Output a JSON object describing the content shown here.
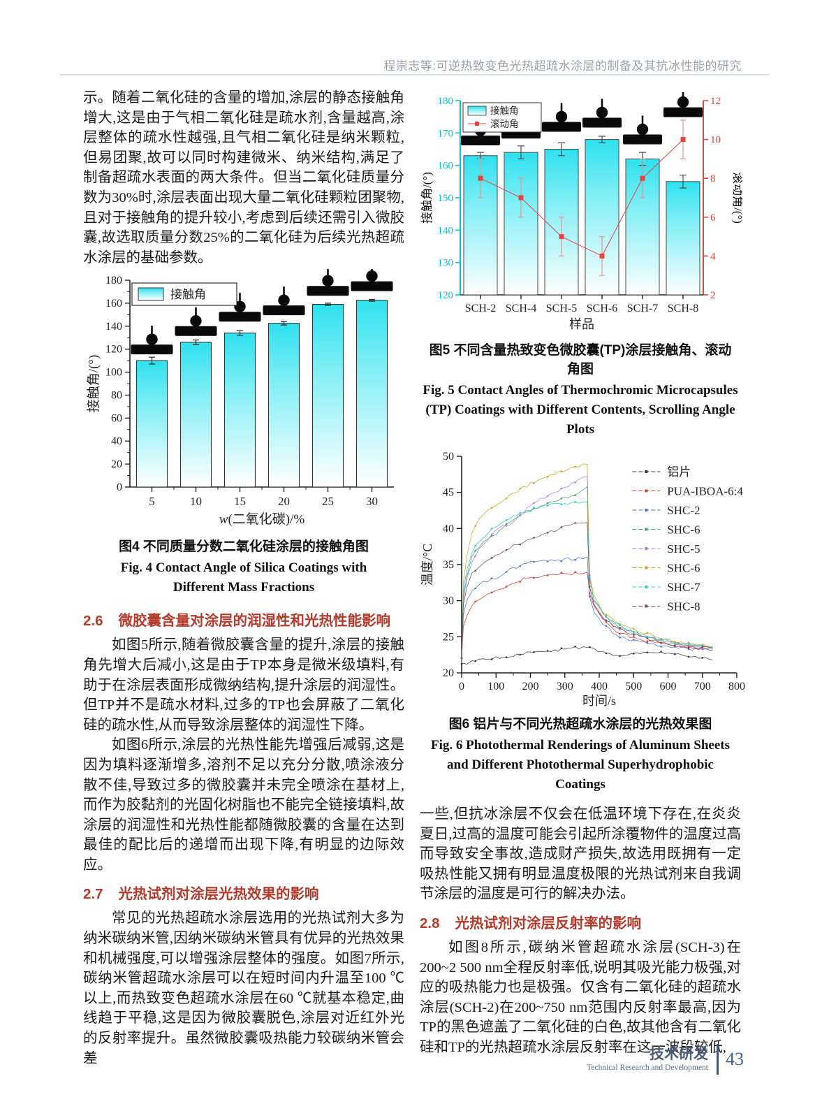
{
  "header": {
    "running_title": "程崇志等:可逆热致变色光热超疏水涂层的制备及其抗冰性能的研究"
  },
  "left_column": {
    "para1": "示。随着二氧化硅的含量的增加,涂层的静态接触角增大,这是由于气相二氧化硅是疏水剂,含量越高,涂层整体的疏水性越强,且气相二氧化硅是纳米颗粒,但易团聚,故可以同时构建微米、纳米结构,满足了制备超疏水表面的两大条件。但当二氧化硅质量分数为30%时,涂层表面出现大量二氧化硅颗粒团聚物,且对于接触角的提升较小,考虑到后续还需引入微胶囊,故选取质量分数25%的二氧化硅为后续光热超疏水涂层的基础参数。",
    "fig4_caption_cn": "图4  不同质量分数二氧化硅涂层的接触角图",
    "fig4_caption_en": "Fig. 4  Contact Angle of Silica Coatings with Different Mass Fractions",
    "sec26_num": "2.6",
    "sec26_title": "微胶囊含量对涂层的润湿性和光热性能影响",
    "sec26_para1": "如图5所示,随着微胶囊含量的提升,涂层的接触角先增大后减小,这是由于TP本身是微米级填料,有助于在涂层表面形成微纳结构,提升涂层的润湿性。但TP并不是疏水材料,过多的TP也会屏蔽了二氧化硅的疏水性,从而导致涂层整体的润湿性下降。",
    "sec26_para2": "如图6所示,涂层的光热性能先增强后减弱,这是因为填料逐渐增多,溶剂不足以充分分散,喷涂液分散不佳,导致过多的微胶囊并未完全喷涂在基材上,而作为胶黏剂的光固化树脂也不能完全链接填料,故涂层的润湿性和光热性能都随微胶囊的含量在达到最佳的配比后的递增而出现下降,有明显的边际效应。",
    "sec27_num": "2.7",
    "sec27_title": "光热试剂对涂层光热效果的影响",
    "sec27_para1": "常见的光热超疏水涂层选用的光热试剂大多为纳米碳纳米管,因纳米碳纳米管具有优异的光热效果和机械强度,可以增强涂层整体的强度。如图7所示,碳纳米管超疏水涂层可以在短时间内升温至100 ℃以上,而热致变色超疏水涂层在60 ℃就基本稳定,曲线趋于平稳,这是因为微胶囊脱色,涂层对近红外光的反射率提升。虽然微胶囊吸热能力较碳纳米管会差"
  },
  "right_column": {
    "fig5_caption_cn": "图5  不同含量热致变色微胶囊(TP)涂层接触角、滚动角图",
    "fig5_caption_en": "Fig. 5  Contact Angles of Thermochromic Microcapsules (TP) Coatings with Different Contents, Scrolling Angle Plots",
    "fig6_caption_cn": "图6  铝片与不同光热超疏水涂层的光热效果图",
    "fig6_caption_en": "Fig. 6  Photothermal Renderings of Aluminum Sheets and Different Photothermal Superhydrophobic Coatings",
    "para1": "一些,但抗冰涂层不仅会在低温环境下存在,在炎炎夏日,过高的温度可能会引起所涂覆物件的温度过高而导致安全事故,造成财产损失,故选用既拥有一定吸热性能又拥有明显温度极限的光热试剂来自我调节涂层的温度是可行的解决办法。",
    "sec28_num": "2.8",
    "sec28_title": "光热试剂对涂层反射率的影响",
    "sec28_para1": "如图8所示,碳纳米管超疏水涂层(SCH-3)在200~2 500 nm全程反射率低,说明其吸光能力极强,对应的吸热能力也是极强。仅含有二氧化硅的超疏水涂层(SCH-2)在200~750 nm范围内反射率最高,因为TP的黑色遮盖了二氧化硅的白色,故其他含有二氧化硅和TP的光热超疏水涂层反射率在这一波段较低,"
  },
  "footer": {
    "section_cn": "技术研发",
    "section_en": "Technical Research and Development",
    "page_number": "43"
  },
  "chart_data": [
    {
      "id": "fig4",
      "element_id": "fig4-svg",
      "renderer": "contactBar",
      "type": "bar",
      "title": "",
      "categories": [
        "5",
        "10",
        "15",
        "20",
        "25",
        "30"
      ],
      "values": [
        110,
        126,
        134,
        142.5,
        159,
        162.5
      ],
      "errors": [
        3,
        2,
        2,
        1.5,
        1,
        0.8
      ],
      "droplet_y": [
        115.5,
        131.5,
        144,
        149.5,
        166.5,
        170.5
      ],
      "xlabel": "w(二氧化碳)/%",
      "ylabel": "接触角/(°)",
      "ylim": [
        0,
        180
      ],
      "ytick_step": 20,
      "legend": [
        "接触角"
      ],
      "legend_position": "top-left",
      "bar_color_top": "#2ee1ef",
      "bar_color_bottom": "#ffffff",
      "grid": false
    },
    {
      "id": "fig5",
      "element_id": "fig5-svg",
      "renderer": "dualAxis",
      "type": "bar+line",
      "categories": [
        "SCH-2",
        "SCH-4",
        "SCH-5",
        "SCH-6",
        "SCH-7",
        "SCH-8"
      ],
      "series": [
        {
          "name": "接触角",
          "type": "bar",
          "axis": "left",
          "values": [
            163,
            164,
            165,
            168,
            162,
            155
          ],
          "errors": [
            1,
            2,
            2,
            1,
            2,
            2
          ],
          "color": "#2ee1ef"
        },
        {
          "name": "滚动角",
          "type": "line",
          "axis": "right",
          "values": [
            8,
            7,
            5,
            4,
            8,
            10
          ],
          "errors": [
            1,
            1,
            1,
            1,
            1,
            1
          ],
          "color": "#e8423d"
        }
      ],
      "droplet_y": [
        166.2,
        168.3,
        170.4,
        171.7,
        166.5,
        174.9
      ],
      "xlabel": "样品",
      "left_ylabel": "接触角/(°)",
      "left_ylim": [
        120,
        180
      ],
      "left_tick_step": 10,
      "left_color": "#00c9dc",
      "right_ylabel": "滚动角/(°)",
      "right_ylim": [
        2,
        12
      ],
      "right_tick_step": 2,
      "right_color": "#e8423d",
      "legend_position": "top-left",
      "grid": false
    },
    {
      "id": "fig6",
      "element_id": "fig6-svg",
      "renderer": "multiLine",
      "type": "line",
      "xlabel": "时间/s",
      "ylabel": "温度/°C",
      "xlim": [
        0,
        800
      ],
      "xtick_step": 100,
      "ylim": [
        20,
        50
      ],
      "ytick_step": 5,
      "legend_position": "top-right",
      "x": [
        0,
        5,
        15,
        30,
        50,
        75,
        100,
        150,
        200,
        250,
        300,
        340,
        365,
        372,
        385,
        410,
        450,
        500,
        550,
        600,
        650,
        700,
        730
      ],
      "series": [
        {
          "name": "铝片",
          "color": "#3b3b3b",
          "y": [
            21.2,
            21.3,
            21.4,
            21.6,
            21.8,
            22.0,
            22.1,
            22.4,
            22.8,
            23.0,
            23.3,
            23.5,
            23.5,
            23.4,
            23.2,
            22.8,
            22.4,
            22.7,
            23.0,
            22.8,
            22.3,
            22.0,
            21.8
          ]
        },
        {
          "name": "PUA-IBOA-6:4",
          "color": "#e03a30",
          "y": [
            22.0,
            26.5,
            28.0,
            29.3,
            30.2,
            30.8,
            31.3,
            32.5,
            33.3,
            33.5,
            33.7,
            33.8,
            34.0,
            31.0,
            29.3,
            27.5,
            25.8,
            24.8,
            24.4,
            24.0,
            23.6,
            23.3,
            23.2
          ]
        },
        {
          "name": "SHC-2",
          "color": "#4a76c9",
          "y": [
            22.0,
            28.0,
            30.0,
            31.5,
            32.3,
            32.8,
            33.2,
            34.5,
            35.3,
            35.5,
            35.7,
            35.8,
            36.0,
            30.5,
            28.5,
            26.8,
            25.2,
            24.4,
            24.0,
            23.7,
            23.4,
            23.2,
            23.1
          ]
        },
        {
          "name": "SHC-6",
          "color": "#46a372",
          "y": [
            22.0,
            30.5,
            33.5,
            36.0,
            37.5,
            38.6,
            39.3,
            41.3,
            42.4,
            43.4,
            44.3,
            44.8,
            45.6,
            33.0,
            30.0,
            28.2,
            26.6,
            25.6,
            24.9,
            24.3,
            23.9,
            23.6,
            23.5
          ]
        },
        {
          "name": "SHC-5",
          "color": "#b57be6",
          "y": [
            21.5,
            30.0,
            33.0,
            35.5,
            37.2,
            38.3,
            39.8,
            40.8,
            43.2,
            44.6,
            45.6,
            46.8,
            47.3,
            32.0,
            29.4,
            27.8,
            26.3,
            25.4,
            24.8,
            24.2,
            23.8,
            23.5,
            23.4
          ]
        },
        {
          "name": "SHC-6",
          "color": "#d7a322",
          "y": [
            22.0,
            32.5,
            36.0,
            39.3,
            41.3,
            42.4,
            43.2,
            44.8,
            46.2,
            47.2,
            48.1,
            48.7,
            49.0,
            33.5,
            30.5,
            28.6,
            27.0,
            26.0,
            25.2,
            24.6,
            24.1,
            23.8,
            23.6
          ]
        },
        {
          "name": "SHC-7",
          "color": "#38c9c3",
          "y": [
            22.0,
            31.3,
            34.3,
            36.8,
            38.3,
            39.4,
            40.3,
            41.8,
            42.6,
            43.2,
            43.5,
            43.5,
            43.6,
            33.0,
            30.2,
            28.3,
            26.7,
            25.7,
            25.0,
            24.4,
            24.0,
            23.7,
            23.6
          ]
        },
        {
          "name": "SHC-8",
          "color": "#745149",
          "y": [
            22.0,
            29.5,
            32.0,
            33.8,
            34.8,
            35.5,
            36.2,
            37.6,
            38.5,
            39.4,
            40.2,
            40.7,
            41.0,
            32.0,
            29.5,
            27.6,
            26.2,
            25.3,
            24.6,
            24.0,
            23.7,
            23.5,
            23.4
          ]
        }
      ]
    }
  ]
}
